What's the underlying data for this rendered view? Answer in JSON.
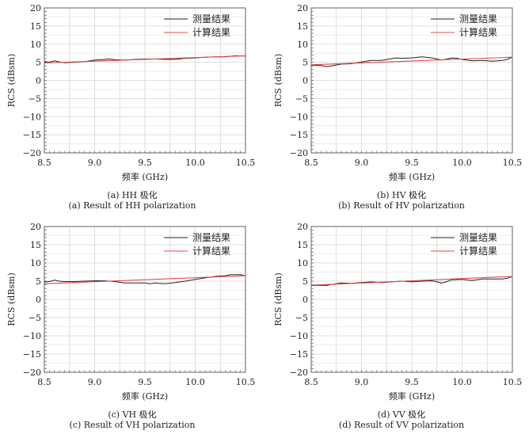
{
  "chart_data": [
    {
      "type": "line",
      "caption_cn": "(a) HH 极化",
      "caption_en": "(a) Result of HH polarization",
      "xlabel": "频率 (GHz)",
      "ylabel": "RCS (dBsm)",
      "xlim": [
        8.5,
        10.5
      ],
      "ylim": [
        -20,
        20
      ],
      "xticks": [
        "8.5",
        "9.0",
        "9.5",
        "10.0",
        "10.5"
      ],
      "yticks": [
        "20",
        "15",
        "10",
        "5",
        "0",
        "−5",
        "−10",
        "−15",
        "−20"
      ],
      "grid": true,
      "legend_position": "top-right",
      "series": [
        {
          "name": "测量结果",
          "color": "#222222",
          "x": [
            8.5,
            8.55,
            8.6,
            8.65,
            8.7,
            8.8,
            8.9,
            9.0,
            9.1,
            9.15,
            9.2,
            9.3,
            9.4,
            9.5,
            9.6,
            9.7,
            9.8,
            9.9,
            10.0,
            10.1,
            10.2,
            10.3,
            10.4,
            10.5
          ],
          "y": [
            5.2,
            5.0,
            5.4,
            5.1,
            4.9,
            5.0,
            5.2,
            5.6,
            5.8,
            5.9,
            5.7,
            5.6,
            5.8,
            5.9,
            5.9,
            5.8,
            5.8,
            6.1,
            6.2,
            6.4,
            6.5,
            6.5,
            6.8,
            6.7
          ]
        },
        {
          "name": "计算结果",
          "color": "#e0474c",
          "x": [
            8.5,
            10.5
          ],
          "y": [
            4.8,
            6.8
          ]
        }
      ]
    },
    {
      "type": "line",
      "caption_cn": "(b) HV 极化",
      "caption_en": "(b) Result of HV polarization",
      "xlabel": "频率 (GHz)",
      "ylabel": "RCS (dBsm)",
      "xlim": [
        8.5,
        10.5
      ],
      "ylim": [
        -20,
        20
      ],
      "xticks": [
        "8.5",
        "9.0",
        "9.5",
        "10.0",
        "10.5"
      ],
      "yticks": [
        "20",
        "15",
        "10",
        "5",
        "0",
        "−5",
        "−10",
        "−15",
        "−20"
      ],
      "grid": true,
      "legend_position": "top-right",
      "series": [
        {
          "name": "测量结果",
          "color": "#222222",
          "x": [
            8.5,
            8.6,
            8.65,
            8.7,
            8.8,
            8.9,
            9.0,
            9.1,
            9.2,
            9.3,
            9.35,
            9.4,
            9.5,
            9.6,
            9.7,
            9.8,
            9.9,
            9.95,
            10.0,
            10.1,
            10.2,
            10.3,
            10.4,
            10.45,
            10.5
          ],
          "y": [
            4.2,
            4.1,
            3.8,
            4.0,
            4.5,
            4.6,
            5.1,
            5.5,
            5.5,
            6.0,
            6.2,
            6.1,
            6.2,
            6.5,
            6.2,
            5.6,
            6.2,
            6.1,
            5.8,
            5.4,
            5.5,
            5.3,
            5.5,
            5.8,
            6.4
          ]
        },
        {
          "name": "计算结果",
          "color": "#e0474c",
          "x": [
            8.5,
            10.5
          ],
          "y": [
            4.3,
            6.4
          ]
        }
      ]
    },
    {
      "type": "line",
      "caption_cn": "(c) VH 极化",
      "caption_en": "(c) Result of VH polarization",
      "xlabel": "频率 (GHz)",
      "ylabel": "RCS (dBsm)",
      "xlim": [
        8.5,
        10.5
      ],
      "ylim": [
        -20,
        20
      ],
      "xticks": [
        "8.5",
        "9.0",
        "9.5",
        "10.0",
        "10.5"
      ],
      "yticks": [
        "20",
        "15",
        "10",
        "5",
        "0",
        "−5",
        "−10",
        "−15",
        "−20"
      ],
      "grid": true,
      "legend_position": "top-right",
      "series": [
        {
          "name": "测量结果",
          "color": "#222222",
          "x": [
            8.5,
            8.55,
            8.6,
            8.65,
            8.7,
            8.8,
            8.9,
            9.0,
            9.1,
            9.2,
            9.3,
            9.4,
            9.5,
            9.55,
            9.6,
            9.7,
            9.8,
            9.9,
            10.0,
            10.1,
            10.2,
            10.3,
            10.35,
            10.45,
            10.5
          ],
          "y": [
            4.8,
            4.9,
            5.3,
            5.0,
            4.9,
            4.9,
            5.0,
            5.1,
            5.1,
            4.9,
            4.5,
            4.5,
            4.5,
            4.3,
            4.5,
            4.3,
            4.6,
            5.0,
            5.5,
            5.9,
            6.3,
            6.5,
            6.8,
            6.8,
            6.5
          ]
        },
        {
          "name": "计算结果",
          "color": "#e0474c",
          "x": [
            8.5,
            10.5
          ],
          "y": [
            4.3,
            6.5
          ]
        }
      ]
    },
    {
      "type": "line",
      "caption_cn": "(d) VV 极化",
      "caption_en": "(d) Result of VV polarization",
      "xlabel": "频率 (GHz)",
      "ylabel": "RCS (dBsm)",
      "xlim": [
        8.5,
        10.5
      ],
      "ylim": [
        -20,
        20
      ],
      "xticks": [
        "8.5",
        "9.0",
        "9.5",
        "10.0",
        "10.5"
      ],
      "yticks": [
        "20",
        "15",
        "10",
        "5",
        "0",
        "−5",
        "−10",
        "−15",
        "−20"
      ],
      "grid": true,
      "legend_position": "top-right",
      "series": [
        {
          "name": "测量结果",
          "color": "#222222",
          "x": [
            8.5,
            8.6,
            8.65,
            8.7,
            8.8,
            8.9,
            9.0,
            9.1,
            9.2,
            9.3,
            9.4,
            9.5,
            9.6,
            9.7,
            9.8,
            9.85,
            9.9,
            10.0,
            10.1,
            10.2,
            10.3,
            10.4,
            10.45,
            10.5
          ],
          "y": [
            3.8,
            3.9,
            3.8,
            4.1,
            4.5,
            4.4,
            4.6,
            4.8,
            4.6,
            4.8,
            5.0,
            4.8,
            5.0,
            5.1,
            4.5,
            4.9,
            5.4,
            5.5,
            5.2,
            5.6,
            5.6,
            5.6,
            5.8,
            6.3
          ]
        },
        {
          "name": "计算结果",
          "color": "#e0474c",
          "x": [
            8.5,
            10.5
          ],
          "y": [
            3.9,
            6.3
          ]
        }
      ]
    }
  ]
}
